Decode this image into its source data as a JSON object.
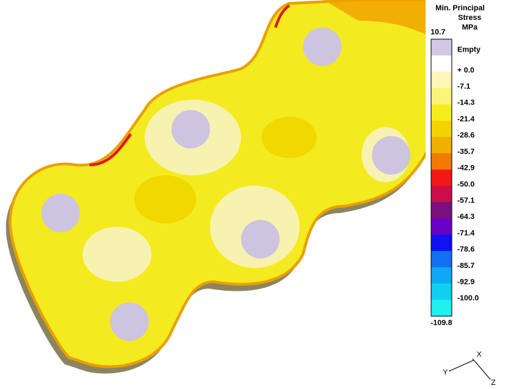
{
  "legend": {
    "title": [
      "Min. Principal",
      "Stress",
      "MPa"
    ],
    "max": "10.7",
    "min": "-109.8",
    "labels": [
      "Empty",
      "+ 0.0",
      "-7.1",
      "-14.3",
      "-21.4",
      "-28.6",
      "-35.7",
      "-42.9",
      "-50.0",
      "-57.1",
      "-64.3",
      "-71.4",
      "-78.6",
      "-85.7",
      "-92.9",
      "-100.0"
    ],
    "colors": [
      "#d2c8e4",
      "#ffffff",
      "#fdf6b8",
      "#faf47a",
      "#f5ec1e",
      "#f2d400",
      "#f0b000",
      "#f27a00",
      "#f21818",
      "#cc0c4c",
      "#7a1080",
      "#6a00c8",
      "#1010f0",
      "#1070f0",
      "#10a8f4",
      "#10d0f0",
      "#20f0f0"
    ]
  },
  "triad": {
    "x": "X",
    "y": "Y",
    "z": "Z"
  }
}
